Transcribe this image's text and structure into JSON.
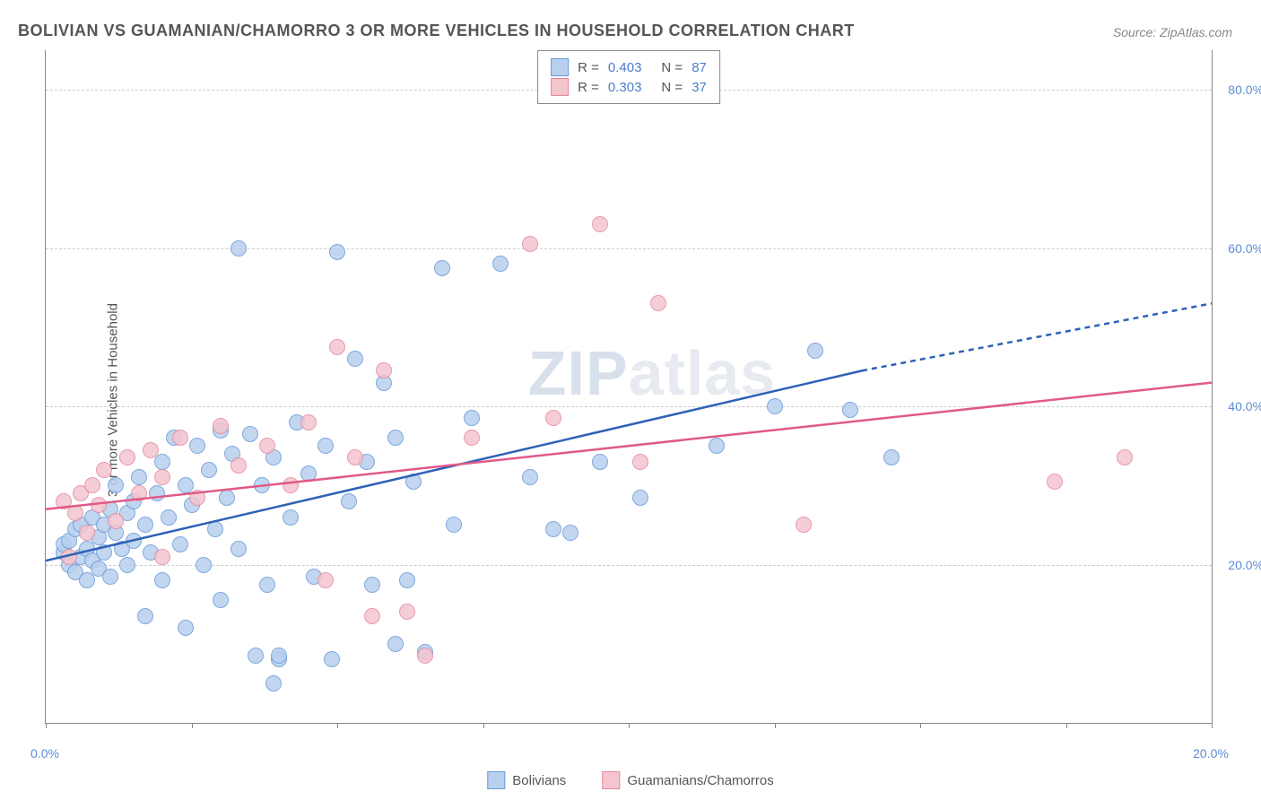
{
  "title": "BOLIVIAN VS GUAMANIAN/CHAMORRO 3 OR MORE VEHICLES IN HOUSEHOLD CORRELATION CHART",
  "source": "Source: ZipAtlas.com",
  "ylabel": "3 or more Vehicles in Household",
  "watermark_a": "ZIP",
  "watermark_b": "atlas",
  "chart": {
    "type": "scatter",
    "xlim": [
      0.0,
      20.0
    ],
    "ylim": [
      0.0,
      85.0
    ],
    "xticks": [
      0.0,
      2.5,
      5.0,
      7.5,
      10.0,
      12.5,
      15.0,
      17.5,
      20.0
    ],
    "xticks_labeled": [
      {
        "v": 0.0,
        "l": "0.0%"
      },
      {
        "v": 20.0,
        "l": "20.0%"
      }
    ],
    "yticks": [
      {
        "v": 20.0,
        "l": "20.0%"
      },
      {
        "v": 40.0,
        "l": "40.0%"
      },
      {
        "v": 60.0,
        "l": "60.0%"
      },
      {
        "v": 80.0,
        "l": "80.0%"
      }
    ],
    "grid_color": "#cccccc",
    "background_color": "#ffffff",
    "axis_color": "#888888",
    "tick_label_color": "#5b8dd6",
    "marker_radius": 8,
    "series": [
      {
        "name": "Bolivians",
        "fill": "#b8d0ee",
        "stroke": "#6a9bd8",
        "R": 0.403,
        "N": 87,
        "trend": {
          "x1": 0.0,
          "y1": 20.5,
          "x2": 14.0,
          "y2": 44.5,
          "color": "#2e62b8",
          "width": 2.5,
          "dash_extend_to": 20.0,
          "dash_y2": 53.0
        },
        "points": [
          [
            0.3,
            21.5
          ],
          [
            0.3,
            22.5
          ],
          [
            0.4,
            20.0
          ],
          [
            0.4,
            23.0
          ],
          [
            0.5,
            19.0
          ],
          [
            0.5,
            24.5
          ],
          [
            0.6,
            21.0
          ],
          [
            0.6,
            25.0
          ],
          [
            0.7,
            22.0
          ],
          [
            0.7,
            18.0
          ],
          [
            0.8,
            26.0
          ],
          [
            0.8,
            20.5
          ],
          [
            0.9,
            23.5
          ],
          [
            0.9,
            19.5
          ],
          [
            1.0,
            21.5
          ],
          [
            1.0,
            25.0
          ],
          [
            1.1,
            27.0
          ],
          [
            1.1,
            18.5
          ],
          [
            1.2,
            24.0
          ],
          [
            1.2,
            30.0
          ],
          [
            1.3,
            22.0
          ],
          [
            1.4,
            26.5
          ],
          [
            1.4,
            20.0
          ],
          [
            1.5,
            28.0
          ],
          [
            1.5,
            23.0
          ],
          [
            1.6,
            31.0
          ],
          [
            1.7,
            25.0
          ],
          [
            1.7,
            13.5
          ],
          [
            1.8,
            21.5
          ],
          [
            1.9,
            29.0
          ],
          [
            2.0,
            33.0
          ],
          [
            2.0,
            18.0
          ],
          [
            2.1,
            26.0
          ],
          [
            2.2,
            36.0
          ],
          [
            2.3,
            22.5
          ],
          [
            2.4,
            30.0
          ],
          [
            2.4,
            12.0
          ],
          [
            2.5,
            27.5
          ],
          [
            2.6,
            35.0
          ],
          [
            2.7,
            20.0
          ],
          [
            2.8,
            32.0
          ],
          [
            2.9,
            24.5
          ],
          [
            3.0,
            37.0
          ],
          [
            3.0,
            15.5
          ],
          [
            3.1,
            28.5
          ],
          [
            3.2,
            34.0
          ],
          [
            3.3,
            60.0
          ],
          [
            3.3,
            22.0
          ],
          [
            3.5,
            36.5
          ],
          [
            3.6,
            8.5
          ],
          [
            3.7,
            30.0
          ],
          [
            3.8,
            17.5
          ],
          [
            3.9,
            33.5
          ],
          [
            3.9,
            5.0
          ],
          [
            4.0,
            8.0
          ],
          [
            4.0,
            8.5
          ],
          [
            4.2,
            26.0
          ],
          [
            4.3,
            38.0
          ],
          [
            4.5,
            31.5
          ],
          [
            4.6,
            18.5
          ],
          [
            4.8,
            35.0
          ],
          [
            4.9,
            8.0
          ],
          [
            5.0,
            59.5
          ],
          [
            5.2,
            28.0
          ],
          [
            5.3,
            46.0
          ],
          [
            5.5,
            33.0
          ],
          [
            5.6,
            17.5
          ],
          [
            5.8,
            43.0
          ],
          [
            6.0,
            36.0
          ],
          [
            6.0,
            10.0
          ],
          [
            6.2,
            18.0
          ],
          [
            6.3,
            30.5
          ],
          [
            6.5,
            9.0
          ],
          [
            6.8,
            57.5
          ],
          [
            7.0,
            25.0
          ],
          [
            7.3,
            38.5
          ],
          [
            7.8,
            58.0
          ],
          [
            8.3,
            31.0
          ],
          [
            8.7,
            24.5
          ],
          [
            9.0,
            24.0
          ],
          [
            9.5,
            33.0
          ],
          [
            10.2,
            28.5
          ],
          [
            11.5,
            35.0
          ],
          [
            12.5,
            40.0
          ],
          [
            13.2,
            47.0
          ],
          [
            13.8,
            39.5
          ],
          [
            14.5,
            33.5
          ]
        ]
      },
      {
        "name": "Guamanians/Chamorros",
        "fill": "#f4c5cf",
        "stroke": "#e38aa0",
        "R": 0.303,
        "N": 37,
        "trend": {
          "x1": 0.0,
          "y1": 27.0,
          "x2": 20.0,
          "y2": 43.0,
          "color": "#e05a87",
          "width": 2.5
        },
        "points": [
          [
            0.3,
            28.0
          ],
          [
            0.4,
            21.0
          ],
          [
            0.5,
            26.5
          ],
          [
            0.6,
            29.0
          ],
          [
            0.7,
            24.0
          ],
          [
            0.8,
            30.0
          ],
          [
            0.9,
            27.5
          ],
          [
            1.0,
            32.0
          ],
          [
            1.2,
            25.5
          ],
          [
            1.4,
            33.5
          ],
          [
            1.6,
            29.0
          ],
          [
            1.8,
            34.5
          ],
          [
            2.0,
            31.0
          ],
          [
            2.0,
            21.0
          ],
          [
            2.3,
            36.0
          ],
          [
            2.6,
            28.5
          ],
          [
            3.0,
            37.5
          ],
          [
            3.3,
            32.5
          ],
          [
            3.8,
            35.0
          ],
          [
            4.2,
            30.0
          ],
          [
            4.5,
            38.0
          ],
          [
            4.8,
            18.0
          ],
          [
            5.0,
            47.5
          ],
          [
            5.3,
            33.5
          ],
          [
            5.6,
            13.5
          ],
          [
            5.8,
            44.5
          ],
          [
            6.2,
            14.0
          ],
          [
            6.5,
            8.5
          ],
          [
            7.3,
            36.0
          ],
          [
            8.3,
            60.5
          ],
          [
            8.7,
            38.5
          ],
          [
            9.5,
            63.0
          ],
          [
            10.2,
            33.0
          ],
          [
            10.5,
            53.0
          ],
          [
            13.0,
            25.0
          ],
          [
            17.3,
            30.5
          ],
          [
            18.5,
            33.5
          ]
        ]
      }
    ]
  },
  "legend_top": {
    "rows": [
      {
        "swatch_fill": "#b8d0ee",
        "swatch_stroke": "#6a9bd8",
        "r_label": "R =",
        "r_val": "0.403",
        "n_label": "N =",
        "n_val": "87"
      },
      {
        "swatch_fill": "#f4c5cf",
        "swatch_stroke": "#e38aa0",
        "r_label": "R =",
        "r_val": "0.303",
        "n_label": "N =",
        "n_val": "37"
      }
    ]
  },
  "legend_bottom": {
    "items": [
      {
        "swatch_fill": "#b8d0ee",
        "swatch_stroke": "#6a9bd8",
        "label": "Bolivians"
      },
      {
        "swatch_fill": "#f4c5cf",
        "swatch_stroke": "#e38aa0",
        "label": "Guamanians/Chamorros"
      }
    ]
  }
}
